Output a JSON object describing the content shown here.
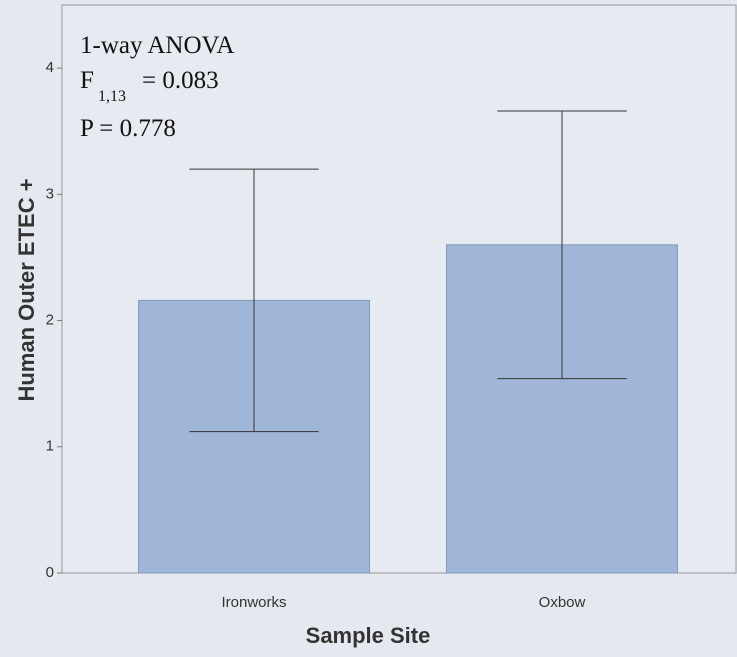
{
  "chart_data": {
    "type": "bar",
    "x_label": "Sample Site",
    "y_label": "Human Outer ETEC +",
    "annotation": {
      "line1": "1-way ANOVA",
      "f_symbol": "F",
      "f_subscript": "1,13",
      "f_value": "= 0.083",
      "p_line": "P = 0.778"
    },
    "categories": [
      "Ironworks",
      "Oxbow"
    ],
    "values": [
      2.16,
      2.6
    ],
    "errors": [
      1.04,
      1.06
    ],
    "color": "#a0b6d8",
    "ylim": [
      0,
      4.5
    ],
    "yticks": [
      0,
      1,
      2,
      3,
      4
    ],
    "grid": false
  }
}
